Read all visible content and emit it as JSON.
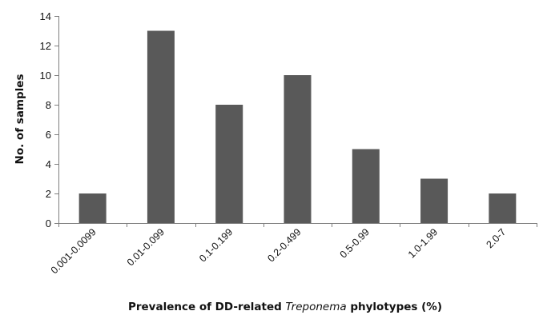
{
  "chart_data": {
    "type": "bar",
    "categories": [
      "0.001-0.0099",
      "0.01-0.099",
      "0.1-0.199",
      "0.2-0.499",
      "0.5-0.99",
      "1.0-1.99",
      "2.0-7"
    ],
    "values": [
      2,
      13,
      8,
      10,
      5,
      3,
      2
    ],
    "title": "",
    "ylabel": "No. of samples",
    "xlabel": {
      "before": "Prevalence of DD-related ",
      "italic": "Treponema",
      "after": " phylotypes (%)"
    },
    "ylim": [
      0,
      14
    ],
    "yticks": [
      0,
      2,
      4,
      6,
      8,
      10,
      12,
      14
    ],
    "grid": false,
    "legend": "none",
    "bar_color": "#595959"
  }
}
